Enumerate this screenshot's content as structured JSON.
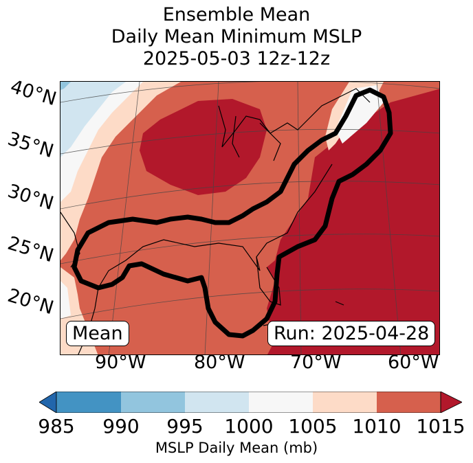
{
  "title": {
    "line1": "Ensemble Mean",
    "line2": "Daily Mean Minimum MSLP",
    "line3": "2025-05-03 12z-12z"
  },
  "map": {
    "lat_labels": [
      "40°N",
      "35°N",
      "30°N",
      "25°N",
      "20°N"
    ],
    "lon_labels": [
      "90°W",
      "80°W",
      "70°W",
      "60°W"
    ],
    "mean_label": "Mean",
    "run_label": "Run: 2025-04-28"
  },
  "colorbar": {
    "label": "MSLP Daily Mean (mb)",
    "ticks": [
      "985",
      "990",
      "995",
      "1000",
      "1005",
      "1010",
      "1015"
    ],
    "colors": [
      "#2166ac",
      "#4393c3",
      "#92c5de",
      "#d1e5f0",
      "#f7f7f7",
      "#fddbc7",
      "#d6604d",
      "#b2182b"
    ]
  }
}
